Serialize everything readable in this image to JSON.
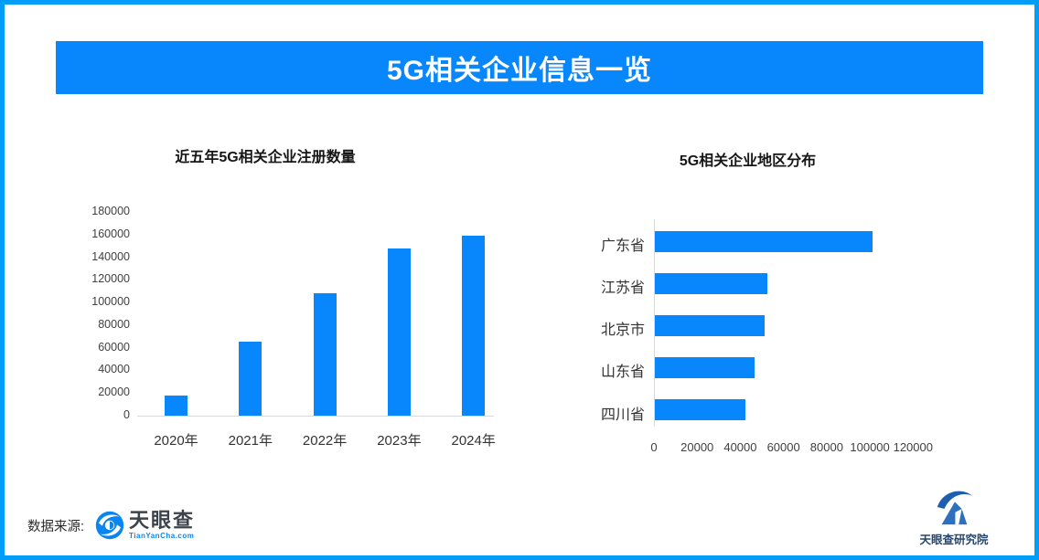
{
  "banner": {
    "title": "5G相关企业信息一览"
  },
  "colors": {
    "primary_blue": "#0787fb",
    "border_blue": "#029df6",
    "axis_line": "#d9d9d9",
    "axis_text": "#404040"
  },
  "chart_data": [
    {
      "type": "bar",
      "orientation": "vertical",
      "title": "近五年5G相关企业注册数量",
      "categories": [
        "2020年",
        "2021年",
        "2022年",
        "2023年",
        "2024年"
      ],
      "values": [
        18000,
        65000,
        108000,
        148000,
        159000
      ],
      "xlabel": "",
      "ylabel": "",
      "ylim": [
        0,
        180000
      ],
      "yticks": [
        0,
        20000,
        40000,
        60000,
        80000,
        100000,
        120000,
        140000,
        160000,
        180000
      ],
      "grid": false,
      "legend": "none",
      "bar_color": "#0787fb"
    },
    {
      "type": "bar",
      "orientation": "horizontal",
      "title": "5G相关企业地区分布",
      "categories": [
        "广东省",
        "江苏省",
        "北京市",
        "山东省",
        "四川省"
      ],
      "values": [
        101000,
        52000,
        51000,
        46000,
        42000
      ],
      "xlabel": "",
      "ylabel": "",
      "xlim": [
        0,
        120000
      ],
      "xticks": [
        0,
        20000,
        40000,
        60000,
        80000,
        100000,
        120000
      ],
      "grid": false,
      "legend": "none",
      "bar_color": "#0787fb"
    }
  ],
  "footer": {
    "source_label": "数据来源:",
    "tianyancha_logo": {
      "name": "天眼查",
      "url_text": "TianYanCha.com"
    },
    "institute_logo": {
      "name": "天眼查研究院"
    }
  }
}
